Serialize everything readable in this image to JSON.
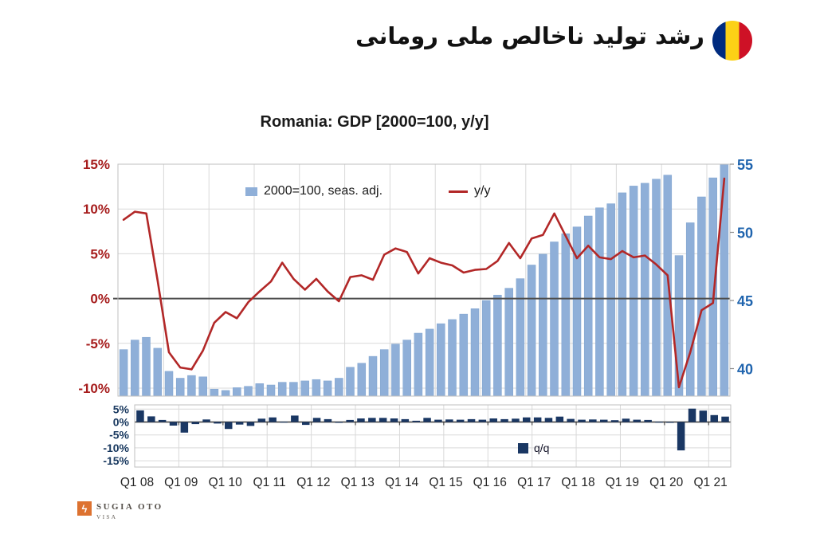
{
  "header": {
    "title": "رشد تولید ناخالص ملی رومانی",
    "flag_icon": "romania-flag-circle",
    "flag_colors": [
      "#002B7F",
      "#FCD116",
      "#CE1126"
    ]
  },
  "chart": {
    "title": "Romania: GDP [2000=100, y/y]",
    "legend": {
      "index_label": "2000=100, seas. adj.",
      "yoy_label": "y/y",
      "qoq_label": "q/q"
    }
  },
  "chart_data": {
    "type": "combo",
    "title": "Romania: GDP [2000=100, y/y]",
    "x_axis": {
      "labels": [
        "Q1 08",
        "Q1 09",
        "Q1 10",
        "Q1 11",
        "Q1 12",
        "Q1 13",
        "Q1 14",
        "Q1 15",
        "Q1 16",
        "Q1 17",
        "Q1 18",
        "Q1 19",
        "Q1 20",
        "Q1 21"
      ],
      "quarters": [
        "2008Q1",
        "2008Q2",
        "2008Q3",
        "2008Q4",
        "2009Q1",
        "2009Q2",
        "2009Q3",
        "2009Q4",
        "2010Q1",
        "2010Q2",
        "2010Q3",
        "2010Q4",
        "2011Q1",
        "2011Q2",
        "2011Q3",
        "2011Q4",
        "2012Q1",
        "2012Q2",
        "2012Q3",
        "2012Q4",
        "2013Q1",
        "2013Q2",
        "2013Q3",
        "2013Q4",
        "2014Q1",
        "2014Q2",
        "2014Q3",
        "2014Q4",
        "2015Q1",
        "2015Q2",
        "2015Q3",
        "2015Q4",
        "2016Q1",
        "2016Q2",
        "2016Q3",
        "2016Q4",
        "2017Q1",
        "2017Q2",
        "2017Q3",
        "2017Q4",
        "2018Q1",
        "2018Q2",
        "2018Q3",
        "2018Q4",
        "2019Q1",
        "2019Q2",
        "2019Q3",
        "2019Q4",
        "2020Q1",
        "2020Q2",
        "2020Q3",
        "2020Q4",
        "2021Q1",
        "2021Q2"
      ]
    },
    "upper_panel": {
      "left_axis": {
        "tick_labels": [
          "15%",
          "10%",
          "5%",
          "0%",
          "-5%",
          "-10%"
        ],
        "tick_values": [
          15,
          10,
          5,
          0,
          -5,
          -10
        ],
        "range": [
          -10.9,
          15
        ],
        "color": "#A61C1C"
      },
      "right_axis": {
        "tick_labels": [
          "55",
          "50",
          "45",
          "40"
        ],
        "tick_values": [
          55,
          50,
          45,
          40
        ],
        "range": [
          37.8,
          55
        ],
        "color": "#1F64AE"
      },
      "series": [
        {
          "name": "2000=100, seas. adj.",
          "type": "bar",
          "axis": "right",
          "color": "#8FAFD8",
          "values": [
            41.4,
            42.1,
            42.3,
            41.5,
            39.8,
            39.3,
            39.5,
            39.4,
            38.5,
            38.4,
            38.6,
            38.7,
            38.9,
            38.8,
            39.0,
            39.0,
            39.1,
            39.2,
            39.1,
            39.3,
            40.1,
            40.4,
            40.9,
            41.4,
            41.8,
            42.1,
            42.6,
            42.9,
            43.3,
            43.6,
            44.0,
            44.4,
            45.0,
            45.4,
            45.9,
            46.6,
            47.6,
            48.4,
            49.3,
            49.9,
            50.4,
            51.2,
            51.8,
            52.1,
            52.9,
            53.4,
            53.6,
            53.9,
            54.2,
            48.3,
            50.7,
            52.6,
            54.0,
            55.0
          ]
        },
        {
          "name": "y/y",
          "type": "line",
          "axis": "left",
          "color": "#B22727",
          "values": [
            8.8,
            9.7,
            9.5,
            2.0,
            -6.0,
            -7.7,
            -7.9,
            -5.8,
            -2.7,
            -1.5,
            -2.2,
            -0.4,
            0.8,
            1.9,
            4.0,
            2.2,
            1.0,
            2.2,
            0.8,
            -0.3,
            2.4,
            2.6,
            2.1,
            4.9,
            5.6,
            5.2,
            2.8,
            4.5,
            4.0,
            3.7,
            2.9,
            3.2,
            3.3,
            4.2,
            6.2,
            4.5,
            6.7,
            7.1,
            9.5,
            7.0,
            4.5,
            5.9,
            4.6,
            4.4,
            5.3,
            4.6,
            4.8,
            3.8,
            2.6,
            -9.9,
            -6.0,
            -1.3,
            -0.5,
            13.4
          ]
        }
      ]
    },
    "lower_panel": {
      "left_axis": {
        "tick_labels": [
          "5%",
          "0%",
          "-5%",
          "-10%",
          "-15%"
        ],
        "tick_values": [
          5,
          0,
          -5,
          -10,
          -15
        ],
        "range": [
          -17.4,
          6.6
        ],
        "color": "#17375E"
      },
      "series": [
        {
          "name": "q/q",
          "type": "bar",
          "color": "#1A3763",
          "values": [
            4.5,
            2.2,
            0.8,
            -1.4,
            -4.1,
            -0.8,
            1.0,
            -0.6,
            -2.7,
            -1.0,
            -1.5,
            1.3,
            1.8,
            0.1,
            2.5,
            -1.1,
            1.6,
            1.1,
            -0.3,
            0.8,
            1.4,
            1.6,
            1.6,
            1.4,
            1.1,
            0.5,
            1.6,
            0.9,
            1.0,
            0.9,
            1.1,
            0.9,
            1.4,
            1.1,
            1.3,
            1.8,
            1.8,
            1.6,
            2.1,
            1.2,
            0.9,
            1.0,
            0.9,
            0.7,
            1.3,
            0.9,
            0.8,
            0.1,
            -0.3,
            -11.0,
            5.2,
            4.4,
            2.7,
            2.1
          ]
        }
      ]
    },
    "grid": true,
    "legend_position": "inside-top",
    "colors": {
      "grid": "#D9D9D9",
      "border": "#BFBFBF",
      "zero_line": "#4D4D4D",
      "x_labels": "#262626"
    }
  },
  "footer": {
    "logo_icon": "orange-square-lightning",
    "logo_color": "#DD7230",
    "logo_line1": "SUGIA OTO",
    "logo_line2": "VISA"
  }
}
